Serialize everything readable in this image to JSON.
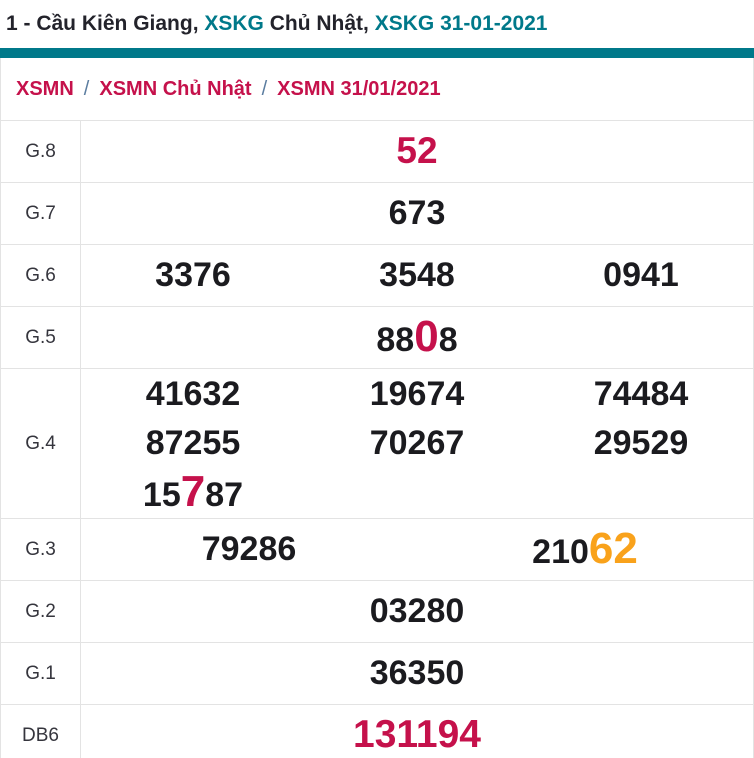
{
  "title": {
    "segments": [
      {
        "text": "1 - Cầu Kiên Giang, ",
        "style": "dark"
      },
      {
        "text": "XSKG",
        "style": "teal"
      },
      {
        "text": " Chủ Nhật, ",
        "style": "dark"
      },
      {
        "text": "XSKG 31-01-2021",
        "style": "teal"
      }
    ]
  },
  "breadcrumb": {
    "separator": "/",
    "items": [
      "XSMN",
      "XSMN Chủ Nhật",
      "XSMN 31/01/2021"
    ]
  },
  "table": {
    "rows": [
      {
        "name": "g8",
        "label": "G.8",
        "lines": [
          [
            [
              {
                "t": "52",
                "s": "red-lg"
              }
            ]
          ]
        ]
      },
      {
        "name": "g7",
        "label": "G.7",
        "lines": [
          [
            [
              {
                "t": "673"
              }
            ]
          ]
        ]
      },
      {
        "name": "g6",
        "label": "G.6",
        "lines": [
          [
            [
              {
                "t": "3376"
              }
            ],
            [
              {
                "t": "3548"
              }
            ],
            [
              {
                "t": "0941"
              }
            ]
          ]
        ]
      },
      {
        "name": "g5",
        "label": "G.5",
        "lines": [
          [
            [
              {
                "t": "88"
              },
              {
                "t": "0",
                "s": "hl-red"
              },
              {
                "t": "8"
              }
            ]
          ]
        ]
      },
      {
        "name": "g4",
        "label": "G.4",
        "tall": true,
        "lines": [
          [
            [
              {
                "t": "41632"
              }
            ],
            [
              {
                "t": "19674"
              }
            ],
            [
              {
                "t": "74484"
              }
            ]
          ],
          [
            [
              {
                "t": "87255"
              }
            ],
            [
              {
                "t": "70267"
              }
            ],
            [
              {
                "t": "29529"
              }
            ]
          ],
          [
            [
              {
                "t": "15"
              },
              {
                "t": "7",
                "s": "hl-red"
              },
              {
                "t": "87"
              }
            ],
            [],
            []
          ]
        ]
      },
      {
        "name": "g3",
        "label": "G.3",
        "lines": [
          [
            [
              {
                "t": "79286"
              }
            ],
            [
              {
                "t": "210"
              },
              {
                "t": "62",
                "s": "hl-orange"
              }
            ]
          ]
        ]
      },
      {
        "name": "g2",
        "label": "G.2",
        "lines": [
          [
            [
              {
                "t": "03280"
              }
            ]
          ]
        ]
      },
      {
        "name": "g1",
        "label": "G.1",
        "lines": [
          [
            [
              {
                "t": "36350"
              }
            ]
          ]
        ]
      },
      {
        "name": "db6",
        "label": "DB6",
        "lines": [
          [
            [
              {
                "t": "131194",
                "s": "red-xl"
              }
            ]
          ]
        ]
      }
    ]
  },
  "colors": {
    "teal": "#00798a",
    "red": "#c5114b",
    "orange": "#f9a21b",
    "separator": "#5b7da0",
    "border": "#e3e3e3",
    "number": "#1b1b1f",
    "title_dark": "#23232b"
  }
}
